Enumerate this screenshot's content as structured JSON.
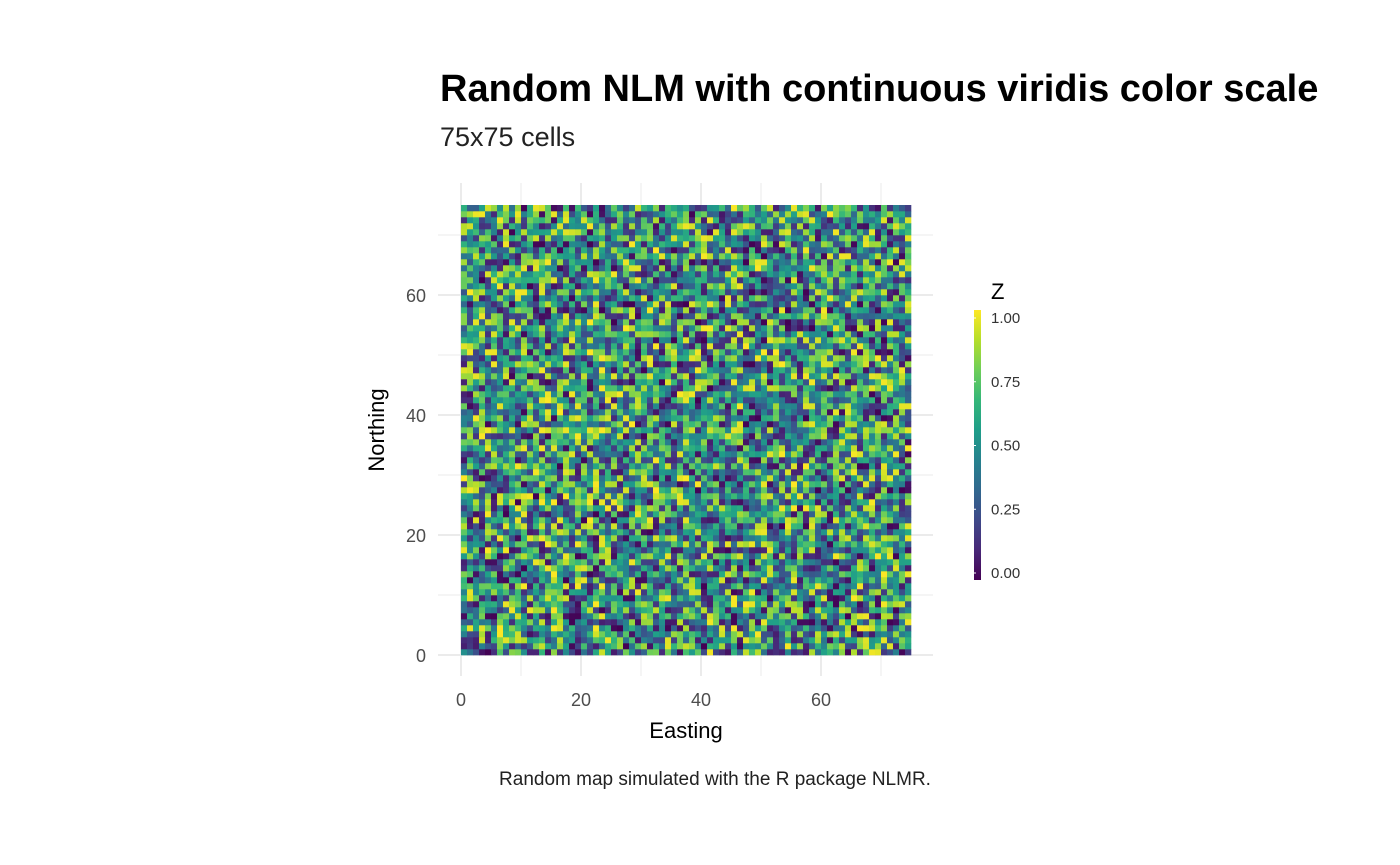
{
  "chart_data": {
    "type": "heatmap",
    "title": "Random NLM with continuous viridis color scale",
    "subtitle": "75x75 cells",
    "caption": "Random map simulated with the R package NLMR.",
    "xlabel": "Easting",
    "ylabel": "Northing",
    "ncol": 75,
    "nrow": 75,
    "xlim": [
      0,
      75
    ],
    "ylim": [
      0,
      75
    ],
    "x_ticks": [
      "0",
      "20",
      "40",
      "60"
    ],
    "y_ticks": [
      "0",
      "20",
      "40",
      "60"
    ],
    "grid": true,
    "legend": {
      "title": "Z",
      "position": "right",
      "ticks": [
        "0.00",
        "0.25",
        "0.50",
        "0.75",
        "1.00"
      ],
      "range": [
        0,
        1
      ]
    },
    "colorscale": "viridis",
    "values_note": "",
    "viridis_stops": [
      "#440154",
      "#482878",
      "#3e4989",
      "#31688e",
      "#26828e",
      "#1f9e89",
      "#35b779",
      "#6ece58",
      "#b5de2b",
      "#fde725"
    ]
  }
}
